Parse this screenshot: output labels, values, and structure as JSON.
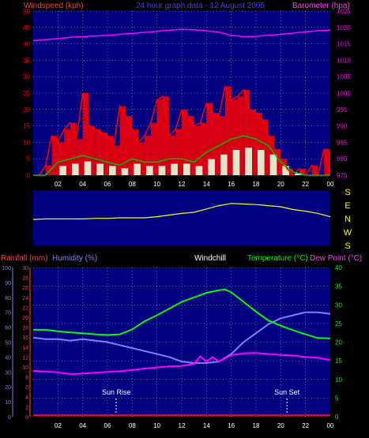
{
  "colors": {
    "background": "#000000",
    "plot_bg": "#000080",
    "grid": "#c0c0c0",
    "wind": "#ff0000",
    "gust_avg": "#00c000",
    "wind_light": "#e0ffe0",
    "barometer": "#ff00ff",
    "direction": "#ffff00",
    "humidity": "#8080ff",
    "temperature": "#00ff00",
    "dewpoint": "#ff00ff",
    "windchill": "#ffffff",
    "rainfall": "#ff0000",
    "rain_axis": "#ff4040",
    "humidity_axis": "#8080ff",
    "temp_axis": "#00ff00",
    "direction_labels": "#ffff00"
  },
  "chart_data": [
    {
      "type": "line",
      "id": "wind-barometer",
      "title": "24 hour graph data - 12 August 2005",
      "left_axis_label": "Windspeed (kph)",
      "right_axis_label": "Barometer (hpa)",
      "left_ticks": [
        "0",
        "5",
        "10",
        "15",
        "20",
        "25",
        "30",
        "35",
        "40",
        "45",
        "50"
      ],
      "right_ticks": [
        "975",
        "980",
        "985",
        "990",
        "995",
        "1000",
        "1005",
        "1010",
        "1015",
        "1020",
        "1025"
      ],
      "x_ticks": [
        "02",
        "04",
        "06",
        "08",
        "10",
        "12",
        "14",
        "16",
        "18",
        "20",
        "22",
        "00"
      ],
      "ylim_left": [
        0,
        50
      ],
      "ylim_right": [
        975,
        1025
      ],
      "xlim": [
        0,
        24
      ],
      "series": [
        {
          "name": "Barometer",
          "axis": "right",
          "x": [
            0,
            1,
            2,
            3,
            4,
            5,
            6,
            7,
            8,
            9,
            10,
            11,
            12,
            13,
            14,
            15,
            16,
            17,
            18,
            19,
            20,
            21,
            22,
            23,
            24
          ],
          "values": [
            1016,
            1016.3,
            1016.6,
            1017,
            1017.2,
            1017.4,
            1017.6,
            1017.9,
            1018.2,
            1018.5,
            1018.8,
            1019.2,
            1019.4,
            1019.3,
            1019,
            1018.6,
            1017.6,
            1017.2,
            1017.3,
            1017.6,
            1017.9,
            1018.3,
            1018.7,
            1019,
            1019.2
          ]
        },
        {
          "name": "Wind gust",
          "axis": "left",
          "x": [
            0,
            0.5,
            1,
            1.5,
            2,
            2.5,
            3,
            3.5,
            4,
            4.5,
            5,
            5.5,
            6,
            6.5,
            7,
            7.5,
            8,
            8.5,
            9,
            9.5,
            10,
            10.5,
            11,
            11.5,
            12,
            12.5,
            13,
            13.5,
            14,
            14.5,
            15,
            15.5,
            16,
            16.5,
            17,
            17.5,
            18,
            18.5,
            19,
            19.5,
            20,
            20.5,
            21,
            21.5,
            22,
            22.5,
            23,
            23.5,
            24
          ],
          "values": [
            0,
            0,
            3,
            12,
            10,
            14,
            16,
            11,
            25,
            15,
            14,
            13,
            12,
            9,
            21,
            18,
            14,
            10,
            12,
            16,
            23,
            24,
            12,
            14,
            20,
            18,
            15,
            16,
            22,
            19,
            18,
            27,
            23,
            24,
            26,
            20,
            19,
            17,
            12,
            8,
            5,
            2,
            0,
            2,
            0,
            3,
            0,
            8,
            0
          ]
        },
        {
          "name": "Wind average",
          "axis": "left",
          "x": [
            0,
            1,
            2,
            3,
            4,
            5,
            6,
            7,
            8,
            9,
            10,
            11,
            12,
            13,
            14,
            15,
            16,
            17,
            18,
            19,
            20,
            21,
            22,
            23,
            24
          ],
          "values": [
            0,
            0,
            4,
            5,
            6,
            5,
            4,
            3,
            5,
            4,
            4,
            5,
            5,
            4,
            7,
            9,
            11,
            12,
            11,
            9,
            4,
            1,
            0,
            0,
            0
          ]
        }
      ]
    },
    {
      "type": "line",
      "id": "wind-direction",
      "direction_labels": [
        "S",
        "E",
        "N",
        "W",
        "S"
      ],
      "series": [
        {
          "name": "Wind direction",
          "x": [
            0,
            1,
            2,
            3,
            4,
            5,
            6,
            7,
            8,
            9,
            10,
            11,
            12,
            13,
            14,
            15,
            16,
            17,
            18,
            19,
            20,
            21,
            22,
            23,
            24
          ],
          "values": [
            0.47,
            0.48,
            0.48,
            0.48,
            0.48,
            0.49,
            0.49,
            0.5,
            0.5,
            0.5,
            0.52,
            0.55,
            0.58,
            0.6,
            0.66,
            0.72,
            0.76,
            0.75,
            0.74,
            0.72,
            0.7,
            0.65,
            0.62,
            0.58,
            0.52
          ]
        }
      ]
    },
    {
      "type": "line",
      "id": "temp-humidity",
      "labels": {
        "rainfall": "Rainfall (mm)",
        "humidity": "Humidity (%)",
        "windchill": "Windchill",
        "temperature": "Temperature (°C)",
        "dewpoint": "Dew Point (°C)"
      },
      "rain_ticks": [
        "0",
        "2",
        "4",
        "6",
        "8",
        "10",
        "12",
        "14",
        "16",
        "18",
        "20",
        "22",
        "24",
        "26",
        "28",
        "30"
      ],
      "humidity_ticks": [
        "0",
        "10",
        "20",
        "30",
        "40",
        "50",
        "60",
        "70",
        "80",
        "90",
        "100"
      ],
      "temp_ticks": [
        "0",
        "5",
        "10",
        "15",
        "20",
        "25",
        "30",
        "35",
        "40"
      ],
      "x_ticks": [
        "02",
        "04",
        "06",
        "08",
        "10",
        "12",
        "14",
        "16",
        "18",
        "20",
        "22",
        "00"
      ],
      "annotations": {
        "sunrise": "Sun Rise",
        "sunset": "Sun Set",
        "sunrise_hour": 6.7,
        "sunset_hour": 20.5
      },
      "ylim_temp": [
        0,
        40
      ],
      "ylim_humidity": [
        0,
        100
      ],
      "xlim": [
        0,
        24
      ],
      "series": [
        {
          "name": "Temperature",
          "axis": "temp",
          "x": [
            0,
            1,
            2,
            3,
            4,
            5,
            6,
            7,
            8,
            9,
            10,
            11,
            12,
            13,
            14,
            15,
            15.5,
            16,
            17,
            18,
            19,
            20,
            21,
            22,
            23,
            24
          ],
          "values": [
            23.3,
            23.3,
            22.9,
            22.6,
            22.4,
            22.1,
            21.9,
            22.1,
            23.4,
            25.6,
            27.2,
            29,
            30.8,
            32,
            33.2,
            33.9,
            34.1,
            33.4,
            30.8,
            28.2,
            25.8,
            24.4,
            23.2,
            22.1,
            21.1,
            21
          ]
        },
        {
          "name": "Humidity",
          "axis": "humidity",
          "x": [
            0,
            1,
            2,
            3,
            4,
            5,
            6,
            7,
            8,
            9,
            10,
            11,
            12,
            13,
            14,
            15,
            16,
            17,
            18,
            19,
            20,
            21,
            22,
            23,
            24
          ],
          "values": [
            53,
            52,
            52,
            51,
            52,
            51,
            50,
            48,
            46,
            44,
            42,
            40,
            37,
            36,
            36,
            37,
            42,
            50,
            56,
            62,
            66,
            68,
            70,
            70,
            69
          ]
        },
        {
          "name": "Dew Point",
          "axis": "temp",
          "x": [
            0,
            1,
            2,
            3,
            4,
            5,
            6,
            7,
            8,
            9,
            10,
            11,
            12,
            13,
            13.5,
            14,
            14.5,
            15,
            16,
            17,
            18,
            19,
            20,
            21,
            22,
            23,
            24
          ],
          "values": [
            12.3,
            12.1,
            11.9,
            11.4,
            11.6,
            11.8,
            12,
            12.2,
            12.5,
            12.9,
            13.2,
            13.5,
            13.6,
            14.2,
            16.2,
            14.8,
            16,
            14.8,
            16.5,
            17,
            17.1,
            16.8,
            16.6,
            16.4,
            16,
            15.8,
            15.2
          ]
        },
        {
          "name": "Rainfall",
          "axis": "rain",
          "x": [
            0,
            24
          ],
          "values": [
            0,
            0
          ]
        }
      ]
    }
  ]
}
